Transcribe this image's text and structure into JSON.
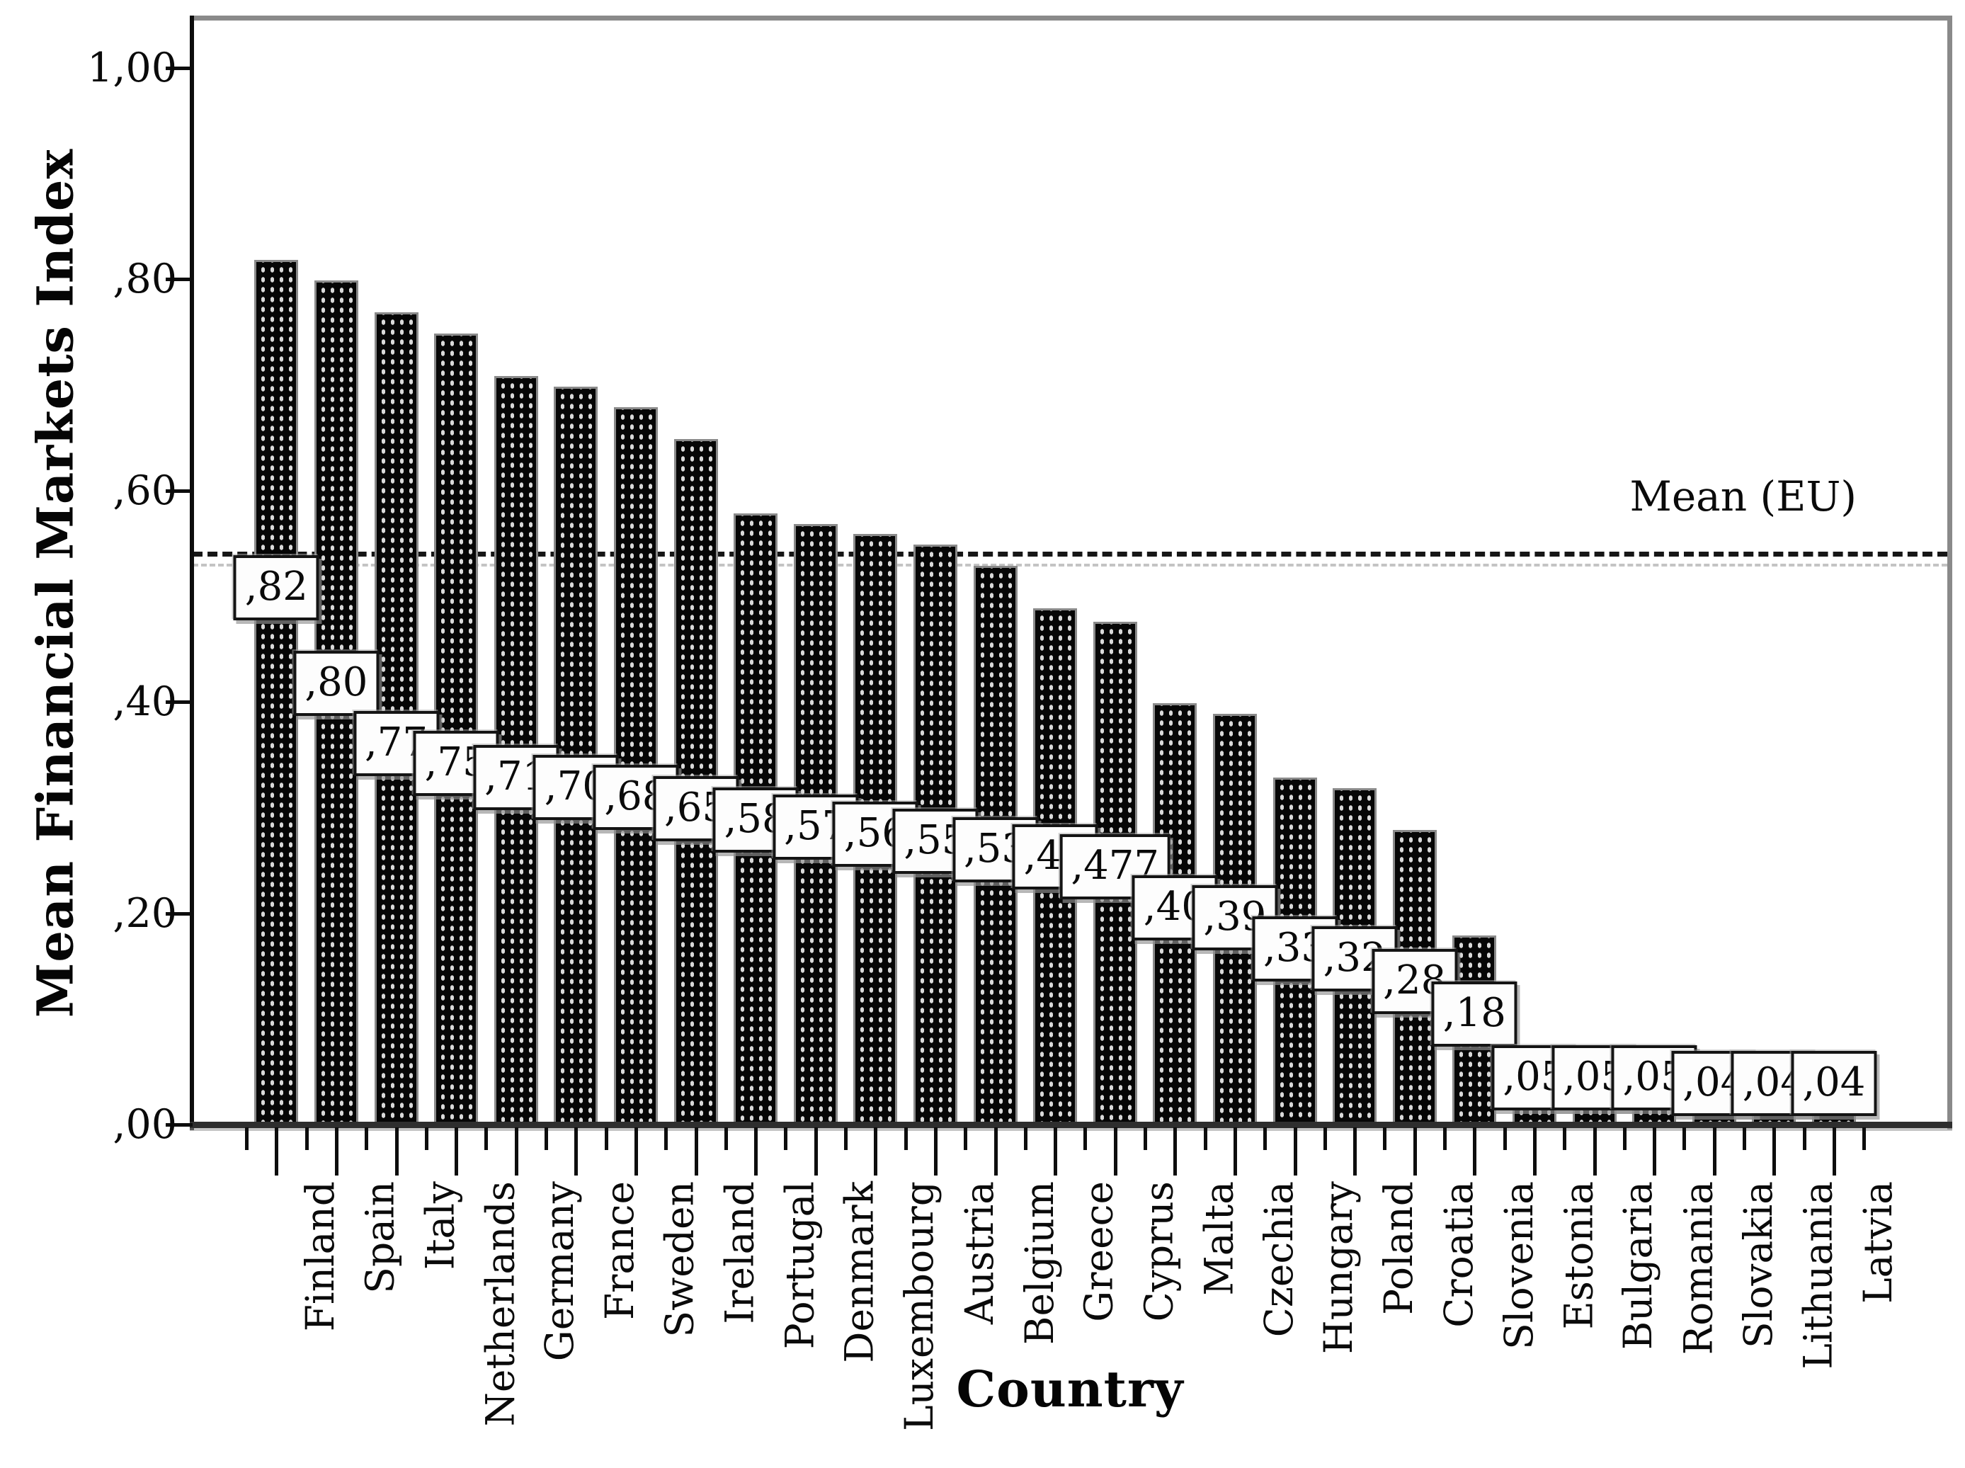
{
  "chart_data": {
    "type": "bar",
    "title": "",
    "xlabel": "Country",
    "ylabel": "Mean Financial Markets Index",
    "decimal_style": "comma",
    "grid": false,
    "legend": "none",
    "ylim": [
      0,
      1.047
    ],
    "y_ticks": [
      {
        "label": "1,00",
        "value": 1.0
      },
      {
        "label": ",80",
        "value": 0.8
      },
      {
        "label": ",60",
        "value": 0.6
      },
      {
        "label": ",40",
        "value": 0.4
      },
      {
        "label": ",20",
        "value": 0.2
      },
      {
        "label": ",00",
        "value": 0.0
      }
    ],
    "categories": [
      "Finland",
      "Spain",
      "Italy",
      "Netherlands",
      "Germany",
      "France",
      "Sweden",
      "Ireland",
      "Portugal",
      "Denmark",
      "Luxembourg",
      "Austria",
      "Belgium",
      "Greece",
      "Cyprus",
      "Malta",
      "Czechia",
      "Hungary",
      "Poland",
      "Croatia",
      "Slovenia",
      "Estonia",
      "Bulgaria",
      "Romania",
      "Slovakia",
      "Lithuania",
      "Latvia"
    ],
    "values": [
      0.82,
      0.8,
      0.77,
      0.75,
      0.71,
      0.7,
      0.68,
      0.65,
      0.58,
      0.57,
      0.56,
      0.55,
      0.53,
      0.49,
      0.477,
      0.4,
      0.39,
      0.33,
      0.32,
      0.28,
      0.18,
      0.05,
      0.05,
      0.05,
      0.04,
      0.04,
      0.04
    ],
    "value_labels": [
      ",82",
      ",80",
      ",77",
      ",75",
      ",71",
      ",70",
      ",68",
      ",65",
      ",58",
      ",57",
      ",56",
      ",55",
      ",53",
      ",49",
      ",477",
      ",40",
      ",39",
      ",33",
      ",32",
      ",28",
      ",18",
      ",05",
      ",05",
      ",05",
      ",04",
      ",04",
      ",04"
    ],
    "mean_line": {
      "label": "Mean (EU)",
      "value": 0.54
    },
    "colors": {
      "bar_fill": "#060606",
      "bar_dots": "#d9d9d9",
      "bar_border": "#8a8a8a",
      "frame": "#8a8a8a",
      "axis": "#0d0d0d",
      "label_box_bg": "#fdfdfd",
      "text": "#0a0a0a"
    }
  }
}
